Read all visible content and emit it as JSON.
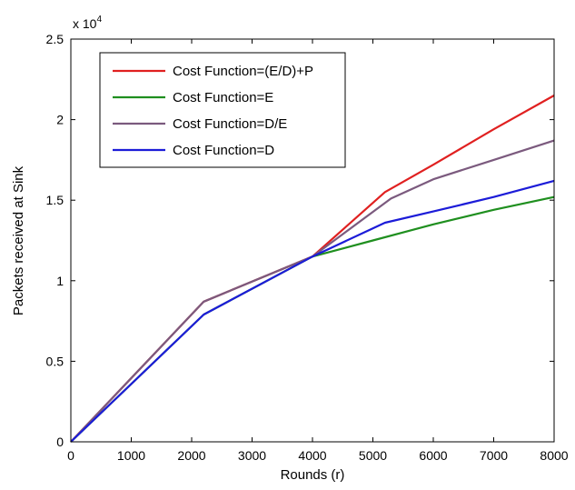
{
  "chart_data": {
    "type": "line",
    "xlabel": "Rounds (r)",
    "ylabel": "Packets received at Sink",
    "xlim": [
      0,
      8000
    ],
    "ylim": [
      0,
      25000
    ],
    "x_ticks": [
      "0",
      "1000",
      "2000",
      "3000",
      "4000",
      "5000",
      "6000",
      "7000",
      "8000"
    ],
    "y_ticks": [
      "0",
      "0.5",
      "1",
      "1.5",
      "2",
      "2.5"
    ],
    "y_multiplier_base": "x 10",
    "y_multiplier_exp": "4",
    "grid": false,
    "legend_position": "top-left",
    "series": [
      {
        "name": "Cost Function=(E/D)+P",
        "color": "#e02020",
        "points": [
          [
            0,
            0
          ],
          [
            2200,
            8700
          ],
          [
            4000,
            11500
          ],
          [
            5200,
            15500
          ],
          [
            6000,
            17200
          ],
          [
            7000,
            19400
          ],
          [
            8000,
            21500
          ]
        ]
      },
      {
        "name": "Cost Function=E",
        "color": "#1f8f1f",
        "points": [
          [
            0,
            0
          ],
          [
            2200,
            7900
          ],
          [
            4000,
            11500
          ],
          [
            5000,
            12500
          ],
          [
            6000,
            13500
          ],
          [
            7000,
            14400
          ],
          [
            8000,
            15200
          ]
        ]
      },
      {
        "name": "Cost Function=D/E",
        "color": "#7b5a7e",
        "points": [
          [
            0,
            0
          ],
          [
            2200,
            8700
          ],
          [
            4000,
            11500
          ],
          [
            5300,
            15100
          ],
          [
            6000,
            16300
          ],
          [
            7000,
            17500
          ],
          [
            8000,
            18700
          ]
        ]
      },
      {
        "name": "Cost Function=D",
        "color": "#1c1cd8",
        "points": [
          [
            0,
            0
          ],
          [
            2200,
            7900
          ],
          [
            4000,
            11500
          ],
          [
            5200,
            13600
          ],
          [
            6000,
            14300
          ],
          [
            7000,
            15200
          ],
          [
            8000,
            16200
          ]
        ]
      }
    ]
  }
}
